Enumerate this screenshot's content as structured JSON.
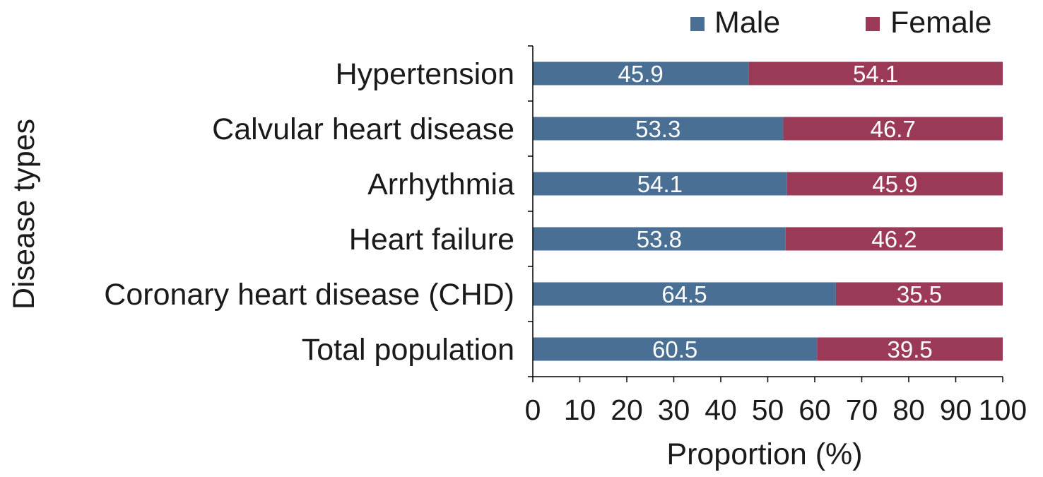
{
  "chart_data": {
    "type": "bar",
    "orientation": "horizontal",
    "stacked": true,
    "title": "",
    "xlabel": "Proportion (%)",
    "ylabel": "Disease types",
    "xlim": [
      0,
      100
    ],
    "xticks": [
      "0",
      "10",
      "20",
      "30",
      "40",
      "50",
      "60",
      "70",
      "80",
      "90",
      "100"
    ],
    "categories": [
      "Hypertension",
      "Calvular heart disease",
      "Arrhythmia",
      "Heart failure",
      "Coronary heart disease (CHD)",
      "Total population"
    ],
    "series": [
      {
        "name": "Male",
        "color": "#4a6f94",
        "values": [
          45.9,
          53.3,
          54.1,
          53.8,
          64.5,
          60.5
        ],
        "labels": [
          "45.9",
          "53.3",
          "54.1",
          "53.8",
          "64.5",
          "60.5"
        ]
      },
      {
        "name": "Female",
        "color": "#9b3a57",
        "values": [
          54.1,
          46.7,
          45.9,
          46.2,
          35.5,
          39.5
        ],
        "labels": [
          "54.1",
          "46.7",
          "45.9",
          "46.2",
          "35.5",
          "39.5"
        ]
      }
    ],
    "legend_position": "top-right",
    "grid": false
  }
}
